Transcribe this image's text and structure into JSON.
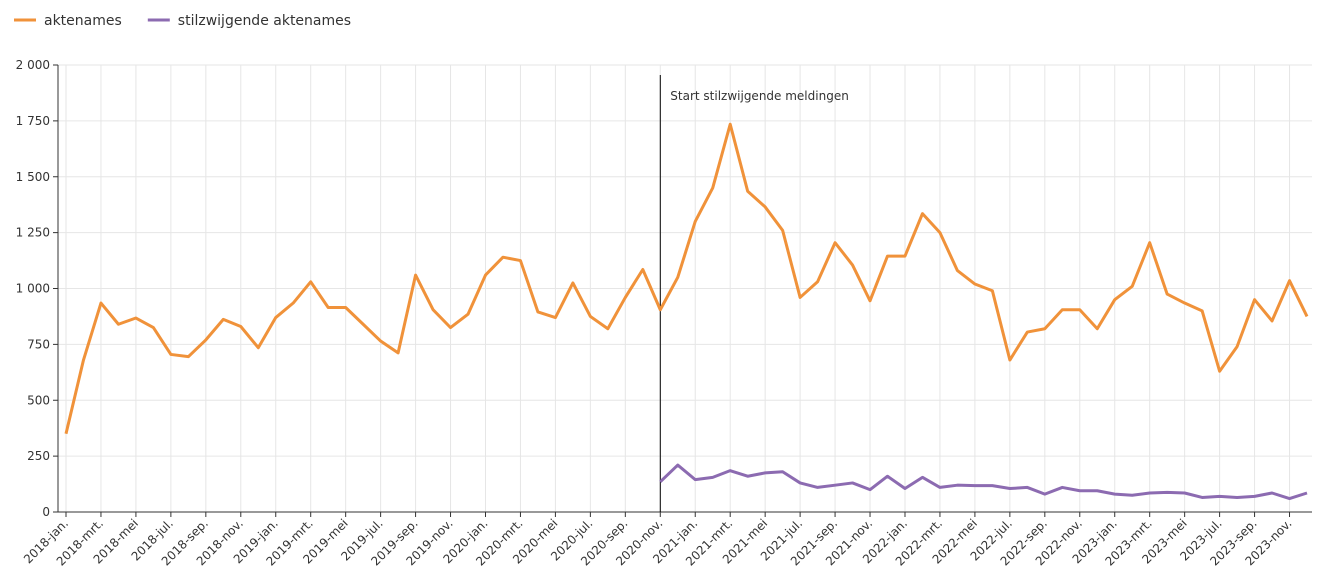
{
  "chart_data": {
    "type": "line",
    "categories": [
      "2018-jan.",
      null,
      "2018-mrt.",
      null,
      "2018-mei",
      null,
      "2018-jul.",
      null,
      "2018-sep.",
      null,
      "2018-nov.",
      null,
      "2019-jan.",
      null,
      "2019-mrt.",
      null,
      "2019-mei",
      null,
      "2019-jul.",
      null,
      "2019-sep.",
      null,
      "2019-nov.",
      null,
      "2020-jan.",
      null,
      "2020-mrt.",
      null,
      "2020-mei",
      null,
      "2020-jul.",
      null,
      "2020-sep.",
      null,
      "2020-nov.",
      null,
      "2021-jan.",
      null,
      "2021-mrt.",
      null,
      "2021-mei",
      null,
      "2021-jul.",
      null,
      "2021-sep.",
      null,
      "2021-nov.",
      null,
      "2022-jan.",
      null,
      "2022-mrt.",
      null,
      "2022-mei",
      null,
      "2022-jul.",
      null,
      "2022-sep.",
      null,
      "2022-nov.",
      null,
      "2023-jan.",
      null,
      "2023-mrt.",
      null,
      "2023-mei",
      null,
      "2023-jul.",
      null,
      "2023-sep.",
      null,
      "2023-nov.",
      null
    ],
    "series": [
      {
        "name": "aktenames",
        "color": "#f0923a",
        "values": [
          350,
          680,
          935,
          840,
          868,
          825,
          705,
          695,
          770,
          862,
          830,
          735,
          870,
          935,
          1030,
          915,
          915,
          840,
          765,
          712,
          1060,
          905,
          825,
          885,
          1060,
          1140,
          1125,
          895,
          870,
          1025,
          875,
          820,
          960,
          1085,
          905,
          1050,
          1300,
          1450,
          1735,
          1435,
          1365,
          1260,
          960,
          1030,
          1205,
          1105,
          945,
          1145,
          1145,
          1335,
          1250,
          1080,
          1020,
          990,
          680,
          805,
          820,
          905,
          905,
          820,
          950,
          1010,
          1205,
          975,
          935,
          900,
          630,
          740,
          950,
          855,
          1035,
          875
        ]
      },
      {
        "name": "stilzwijgende aktenames",
        "color": "#8c6bb1",
        "values": [
          null,
          null,
          null,
          null,
          null,
          null,
          null,
          null,
          null,
          null,
          null,
          null,
          null,
          null,
          null,
          null,
          null,
          null,
          null,
          null,
          null,
          null,
          null,
          null,
          null,
          null,
          null,
          null,
          null,
          null,
          null,
          null,
          null,
          null,
          135,
          210,
          145,
          155,
          185,
          160,
          175,
          180,
          130,
          110,
          120,
          130,
          100,
          160,
          105,
          155,
          110,
          120,
          118,
          118,
          105,
          110,
          80,
          110,
          95,
          95,
          80,
          75,
          85,
          88,
          85,
          65,
          70,
          65,
          70,
          85,
          60,
          85
        ]
      }
    ],
    "ylim": [
      0,
      2000
    ],
    "yticks": [
      0,
      250,
      500,
      750,
      {
        "value": 1000,
        "label": "1 000"
      },
      {
        "value": 1250,
        "label": "1 250"
      },
      {
        "value": 1500,
        "label": "1 500"
      },
      {
        "value": 1750,
        "label": "1 750"
      },
      {
        "value": 2000,
        "label": "2 000"
      }
    ],
    "grid": true,
    "annotation": {
      "text": "Start stilzwijgende meldingen",
      "category": "2020-nov."
    }
  }
}
